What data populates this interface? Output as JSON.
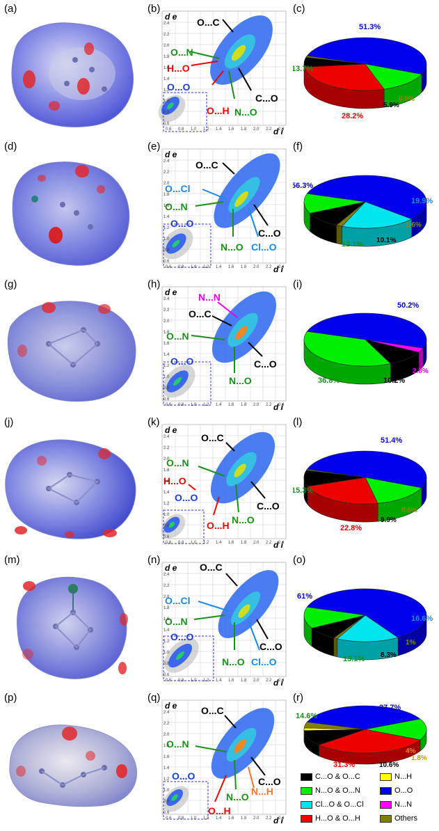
{
  "colors": {
    "co": "#000000",
    "no": "#00ee00",
    "clo": "#00e5ee",
    "ho": "#ee0000",
    "nh": "#ffff00",
    "oo": "#0000ee",
    "nn": "#ff00ff",
    "others": "#808000"
  },
  "rows": [
    {
      "surface_label": "(a)",
      "plot_label": "(b)",
      "pie_label": "(c)",
      "plot_annotations": [
        "O...C",
        "O...N",
        "H...O",
        "O...O",
        "O...H",
        "C...O",
        "N...O"
      ],
      "pie": [
        {
          "key": "oo",
          "value": 51.3,
          "label": "51.3%"
        },
        {
          "key": "no",
          "value": 13.7,
          "label": "13.7%"
        },
        {
          "key": "ho",
          "value": 28.2,
          "label": "28.2%"
        },
        {
          "key": "co",
          "value": 5.9,
          "label": "5.9%"
        },
        {
          "key": "others",
          "value": 0.9,
          "label": "0.9%"
        }
      ]
    },
    {
      "surface_label": "(d)",
      "plot_label": "(e)",
      "pie_label": "(f)",
      "plot_annotations": [
        "O...C",
        "O...Cl",
        "O...N",
        "O...O",
        "N...O",
        "Cl...O",
        "C...O"
      ],
      "pie": [
        {
          "key": "oo",
          "value": 56.3,
          "label": "56.3%"
        },
        {
          "key": "clo",
          "value": 19.9,
          "label": "19.9%"
        },
        {
          "key": "others",
          "value": 1.6,
          "label": "1.6%"
        },
        {
          "key": "co",
          "value": 10.1,
          "label": "10.1%"
        },
        {
          "key": "no",
          "value": 12.1,
          "label": "12.1%"
        }
      ]
    },
    {
      "surface_label": "(g)",
      "plot_label": "(h)",
      "pie_label": "(i)",
      "plot_annotations": [
        "N...N",
        "O...C",
        "O...N",
        "O...O",
        "N...O",
        "C...O"
      ],
      "pie": [
        {
          "key": "oo",
          "value": 50.2,
          "label": "50.2%"
        },
        {
          "key": "nn",
          "value": 2.8,
          "label": "2.8%"
        },
        {
          "key": "co",
          "value": 10.2,
          "label": "10.2%"
        },
        {
          "key": "no",
          "value": 36.8,
          "label": "36.8%"
        }
      ]
    },
    {
      "surface_label": "(j)",
      "plot_label": "(k)",
      "pie_label": "(l)",
      "plot_annotations": [
        "O...C",
        "O...N",
        "H...O",
        "O...O",
        "O...H",
        "N...O",
        "C...O"
      ],
      "pie": [
        {
          "key": "oo",
          "value": 51.4,
          "label": "51.4%"
        },
        {
          "key": "no",
          "value": 15.3,
          "label": "15.3%"
        },
        {
          "key": "ho",
          "value": 22.8,
          "label": "22.8%"
        },
        {
          "key": "co",
          "value": 9.9,
          "label": "9.9%"
        },
        {
          "key": "others",
          "value": 0.6,
          "label": "0.6%"
        }
      ]
    },
    {
      "surface_label": "(m)",
      "plot_label": "(n)",
      "pie_label": "(o)",
      "plot_annotations": [
        "O...C",
        "O...Cl",
        "O...N",
        "O...O",
        "N...O",
        "Cl...O",
        "C...O"
      ],
      "pie": [
        {
          "key": "oo",
          "value": 61,
          "label": "61%"
        },
        {
          "key": "clo",
          "value": 16.6,
          "label": "16.6%"
        },
        {
          "key": "others",
          "value": 1,
          "label": "1%"
        },
        {
          "key": "co",
          "value": 8.3,
          "label": "8.3%"
        },
        {
          "key": "no",
          "value": 13.1,
          "label": "13.1%"
        }
      ]
    },
    {
      "surface_label": "(p)",
      "plot_label": "(q)",
      "pie_label": "(r)",
      "plot_annotations": [
        "O...C",
        "O...N",
        "O...O",
        "N...O",
        "N...H",
        "C...O",
        "O...H"
      ],
      "pie": [
        {
          "key": "oo",
          "value": 37.7,
          "label": "37.7%"
        },
        {
          "key": "no",
          "value": 14.6,
          "label": "14.6%"
        },
        {
          "key": "ho",
          "value": 31.3,
          "label": "31.3%"
        },
        {
          "key": "co",
          "value": 10.6,
          "label": "10.6%"
        },
        {
          "key": "nh",
          "value": 1.8,
          "label": "1.8%"
        },
        {
          "key": "others",
          "value": 4,
          "label": "4%"
        }
      ]
    }
  ],
  "plot_axes": {
    "y_label": "d e",
    "x_label": "d i",
    "y_ticks": [
      "2.4",
      "2.2",
      "2.0",
      "1.8",
      "1.6",
      "1.4",
      "1.2",
      "1.0",
      "0.8",
      "0.6"
    ],
    "x_ticks": [
      "0.6",
      "0.8",
      "1.0",
      "1.2",
      "1.4",
      "1.6",
      "1.8",
      "2.0",
      "2.2",
      "2.4"
    ]
  },
  "legend": [
    {
      "key": "co",
      "label": "C...O & O...C"
    },
    {
      "key": "nh",
      "label": "N...H"
    },
    {
      "key": "no",
      "label": "N...O & O...N"
    },
    {
      "key": "oo",
      "label": "O...O"
    },
    {
      "key": "clo",
      "label": "Cl...O & O...Cl"
    },
    {
      "key": "nn",
      "label": "N...N"
    },
    {
      "key": "ho",
      "label": "H...O & O...H"
    },
    {
      "key": "others",
      "label": "Others"
    }
  ]
}
